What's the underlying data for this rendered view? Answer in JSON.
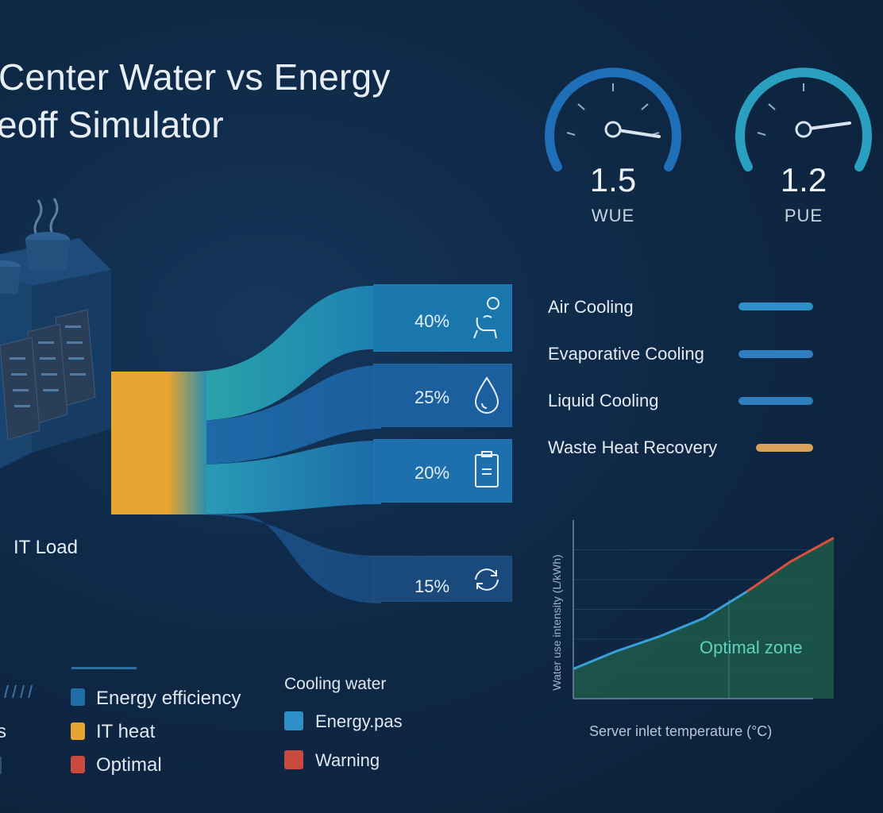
{
  "title": {
    "line1": "Center Water vs Energy",
    "line2": "eoff Simulator"
  },
  "gauges": [
    {
      "value": "1.5",
      "label": "WUE"
    },
    {
      "value": "1.2",
      "label": "PUE"
    }
  ],
  "sankey": {
    "source_label": "IT Load",
    "flows": [
      {
        "percent": "40%",
        "icon": "chair-icon"
      },
      {
        "percent": "25%",
        "icon": "water-drop-icon"
      },
      {
        "percent": "20%",
        "icon": "clipboard-icon"
      },
      {
        "percent": "15%",
        "icon": "recycle-icon"
      }
    ]
  },
  "cooling_methods": [
    {
      "label": "Air Cooling",
      "color": "#2f8fc7"
    },
    {
      "label": "Evaporative Cooling",
      "color": "#2f7fc0"
    },
    {
      "label": "Liquid Cooling",
      "color": "#2f7fc0"
    },
    {
      "label": "Waste Heat Recovery",
      "color": "#d9a25a"
    }
  ],
  "legend": {
    "left_partial": [
      "s",
      ""
    ],
    "group1": [
      {
        "label": "Energy efficiency",
        "color": "#1f6ea8"
      },
      {
        "label": "IT heat",
        "color": "#e6a430"
      },
      {
        "label": "Optimal",
        "color": "#c94a3e"
      }
    ],
    "group2_title": "Cooling water",
    "group2": [
      {
        "label": "Energy.pas",
        "color": "#2f8fc7"
      },
      {
        "label": "Warning",
        "color": "#c94a3e"
      }
    ]
  },
  "chart": {
    "ylabel": "Water use intensity (L/kWh)",
    "xlabel": "Server inlet temperature (°C)",
    "zone_label": "Optimal zone",
    "colors": {
      "line": "#3a9fd8",
      "warning": "#d9503f",
      "fill": "#1e5a4a"
    }
  },
  "chart_data": {
    "type": "line",
    "title": "",
    "xlabel": "Server inlet temperature (°C)",
    "ylabel": "Water use intensity (L/kWh)",
    "series": [
      {
        "name": "",
        "x": [
          0,
          1,
          2,
          3,
          4,
          5,
          6
        ],
        "values": [
          1.0,
          1.6,
          2.1,
          2.7,
          3.6,
          4.6,
          5.4
        ]
      }
    ],
    "xlim": [
      0,
      6
    ],
    "ylim": [
      0,
      6
    ],
    "grid": true
  }
}
